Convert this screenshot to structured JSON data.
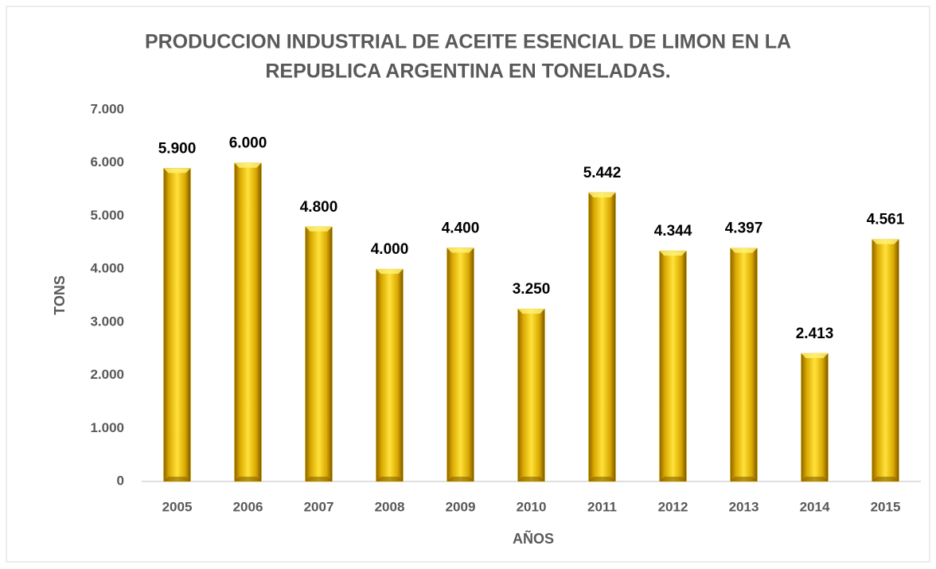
{
  "chart_data": {
    "type": "bar",
    "title": [
      "PRODUCCION INDUSTRIAL DE ACEITE ESENCIAL DE LIMON EN LA",
      "REPUBLICA ARGENTINA EN TONELADAS."
    ],
    "x_label": "AÑOS",
    "y_label": "TONS",
    "categories": [
      "2005",
      "2006",
      "2007",
      "2008",
      "2009",
      "2010",
      "2011",
      "2012",
      "2013",
      "2014",
      "2015"
    ],
    "values": [
      5900,
      6000,
      4800,
      4000,
      4400,
      3250,
      5442,
      4344,
      4397,
      2413,
      4561
    ],
    "value_labels": [
      "5.900",
      "6.000",
      "4.800",
      "4.000",
      "4.400",
      "3.250",
      "5.442",
      "4.344",
      "4.397",
      "2.413",
      "4.561"
    ],
    "color": "#e6b800",
    "ylim": [
      0,
      7000
    ],
    "yticks": [
      0,
      {
        "value": 1000,
        "label": "1.000"
      },
      {
        "value": 2000,
        "label": "2.000"
      },
      {
        "value": 3000,
        "label": "3.000"
      },
      {
        "value": 4000,
        "label": "4.000"
      },
      {
        "value": 5000,
        "label": "5.000"
      },
      {
        "value": 6000,
        "label": "6.000"
      },
      {
        "value": 7000,
        "label": "7.000"
      }
    ],
    "grid": false
  }
}
